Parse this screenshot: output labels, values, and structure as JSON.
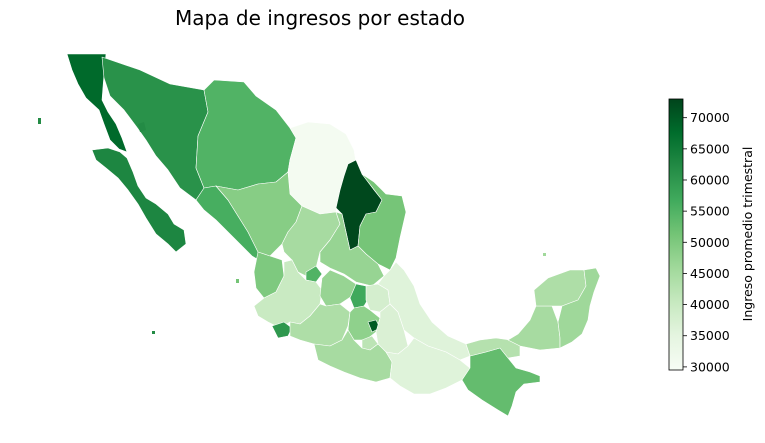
{
  "title": "Mapa de ingresos por estado",
  "colorbar": {
    "label": "Ingreso promedio trimestral",
    "min": 29500,
    "max": 73000,
    "ticks": [
      30000,
      35000,
      40000,
      45000,
      50000,
      55000,
      60000,
      65000,
      70000
    ],
    "colormap": [
      "#f7fcf5",
      "#e5f5e0",
      "#c7e9c0",
      "#a1d99b",
      "#74c476",
      "#41ab5d",
      "#238b45",
      "#006d2c",
      "#00441b"
    ]
  },
  "map_data": {
    "regions": [
      {
        "id": "baja-california",
        "value": 68000
      },
      {
        "id": "baja-california-sur",
        "value": 63000
      },
      {
        "id": "sonora",
        "value": 61000
      },
      {
        "id": "chihuahua",
        "value": 55000
      },
      {
        "id": "coahuila",
        "value": 30500
      },
      {
        "id": "nuevo-leon",
        "value": 72500
      },
      {
        "id": "tamaulipas",
        "value": 51000
      },
      {
        "id": "sinaloa",
        "value": 56000
      },
      {
        "id": "durango",
        "value": 49000
      },
      {
        "id": "zacatecas",
        "value": 45000
      },
      {
        "id": "san-luis-potosi",
        "value": 47000
      },
      {
        "id": "nayarit",
        "value": 50000
      },
      {
        "id": "aguascalientes",
        "value": 55000
      },
      {
        "id": "jalisco",
        "value": 40000
      },
      {
        "id": "guanajuato",
        "value": 47000
      },
      {
        "id": "queretaro",
        "value": 57000
      },
      {
        "id": "hidalgo",
        "value": 38000
      },
      {
        "id": "colima",
        "value": 60000
      },
      {
        "id": "michoacan",
        "value": 44000
      },
      {
        "id": "mexico",
        "value": 48000
      },
      {
        "id": "ciudad-de-mexico",
        "value": 70000
      },
      {
        "id": "tlaxcala",
        "value": 36000
      },
      {
        "id": "morelos",
        "value": 42000
      },
      {
        "id": "puebla",
        "value": 37000
      },
      {
        "id": "veracruz",
        "value": 36000
      },
      {
        "id": "guerrero",
        "value": 45000
      },
      {
        "id": "oaxaca",
        "value": 36000
      },
      {
        "id": "chiapas",
        "value": 53000
      },
      {
        "id": "tabasco",
        "value": 43000
      },
      {
        "id": "campeche",
        "value": 45000
      },
      {
        "id": "yucatan",
        "value": 44000
      },
      {
        "id": "quintana-roo",
        "value": 46000
      }
    ]
  }
}
